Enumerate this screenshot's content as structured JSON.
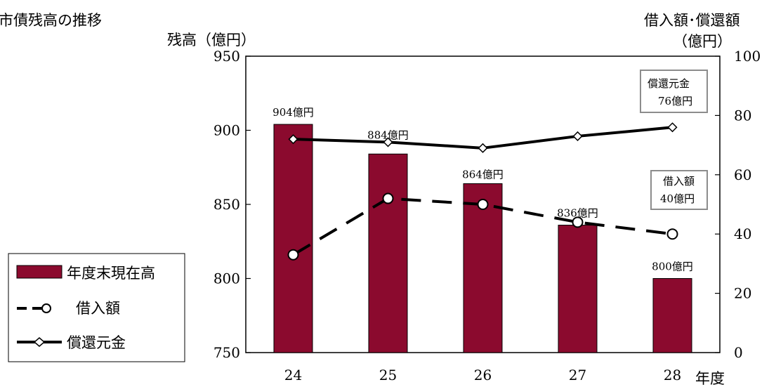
{
  "chart_data": {
    "type": "bar",
    "title": "市債残高の推移",
    "ylabel": "残高（億円）",
    "y2label_line1": "借入額･償還額",
    "y2label_line2": "（億円）",
    "xlabel": "年度",
    "categories": [
      "24",
      "25",
      "26",
      "27",
      "28"
    ],
    "ylim": [
      750,
      950
    ],
    "y2lim": [
      0,
      100
    ],
    "yticks": [
      750,
      800,
      850,
      900,
      950
    ],
    "y2ticks": [
      0,
      20,
      40,
      60,
      80,
      100
    ],
    "series": [
      {
        "name": "年度末現在高",
        "kind": "bar",
        "axis": "left",
        "color": "#8B0A2E",
        "values": [
          904,
          884,
          864,
          836,
          800
        ],
        "labels": [
          "904億円",
          "884億円",
          "864億円",
          "836億円",
          "800億円"
        ]
      },
      {
        "name": "借入額",
        "kind": "line",
        "axis": "right",
        "style": "dashed",
        "marker": "circle",
        "values": [
          33,
          52,
          50,
          44,
          40
        ]
      },
      {
        "name": "償還元金",
        "kind": "line",
        "axis": "right",
        "style": "solid",
        "marker": "diamond",
        "values": [
          72,
          71,
          69,
          73,
          76
        ]
      }
    ],
    "annotations": [
      {
        "series": "償還元金",
        "line1": "償還元金",
        "line2": "76億円"
      },
      {
        "series": "借入額",
        "line1": "借入額",
        "line2": "40億円"
      }
    ],
    "legend_placement": "bottom-left",
    "grid": false
  }
}
